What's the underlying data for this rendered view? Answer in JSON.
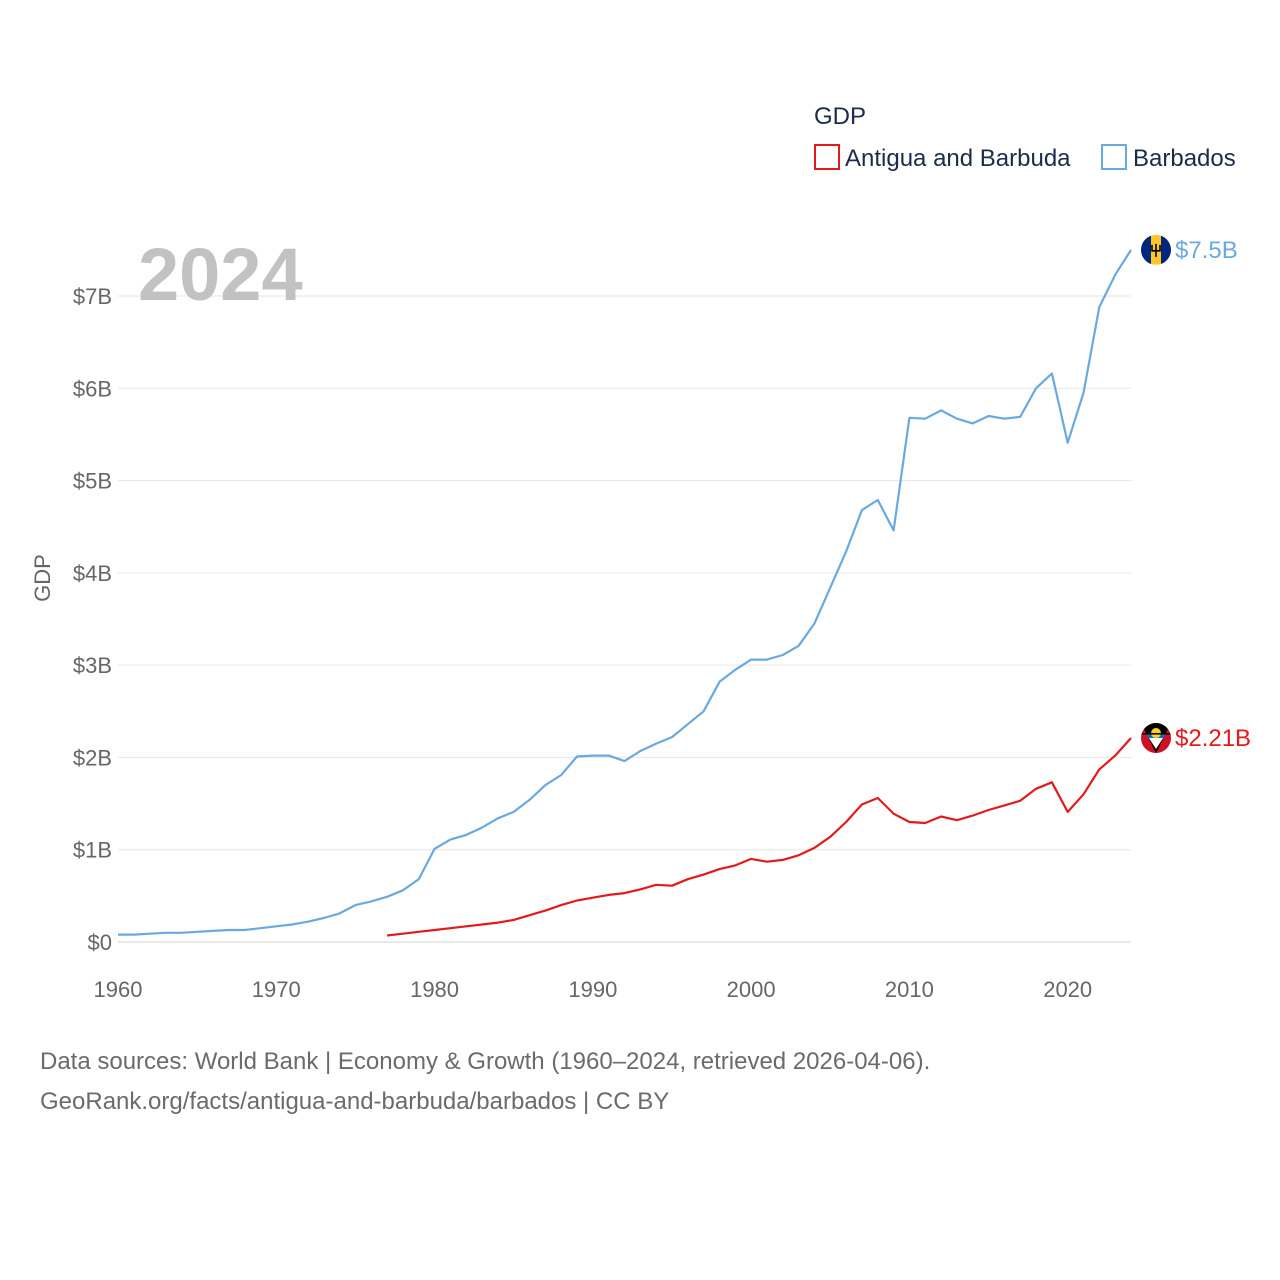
{
  "chart_data": {
    "type": "line",
    "title": "",
    "year_label": "2024",
    "xlabel": "",
    "ylabel": "GDP",
    "xlim": [
      1960,
      2024
    ],
    "ylim": [
      0,
      7.5
    ],
    "grid": true,
    "legend": {
      "title": "GDP",
      "placement": "top-right",
      "items": [
        {
          "label": "Antigua and Barbuda",
          "color": "#e31a1c"
        },
        {
          "label": "Barbados",
          "color": "#6aa9e0"
        }
      ]
    },
    "x_ticks": [
      1960,
      1970,
      1980,
      1990,
      2000,
      2010,
      2020
    ],
    "x_tick_labels": [
      "1960",
      "1970",
      "1980",
      "1990",
      "2000",
      "2010",
      "2020"
    ],
    "y_ticks": [
      0,
      1,
      2,
      3,
      4,
      5,
      6,
      7
    ],
    "y_tick_labels": [
      "$0",
      "$1B",
      "$2B",
      "$3B",
      "$4B",
      "$5B",
      "$6B",
      "$7B"
    ],
    "series": [
      {
        "name": "Barbados",
        "color": "#6aa9e0",
        "flag": "barbados-flag-icon",
        "end_label": "$7.5B",
        "x": [
          1960,
          1961,
          1962,
          1963,
          1964,
          1965,
          1966,
          1967,
          1968,
          1969,
          1970,
          1971,
          1972,
          1973,
          1974,
          1975,
          1976,
          1977,
          1978,
          1979,
          1980,
          1981,
          1982,
          1983,
          1984,
          1985,
          1986,
          1987,
          1988,
          1989,
          1990,
          1991,
          1992,
          1993,
          1994,
          1995,
          1996,
          1997,
          1998,
          1999,
          2000,
          2001,
          2002,
          2003,
          2004,
          2005,
          2006,
          2007,
          2008,
          2009,
          2010,
          2011,
          2012,
          2013,
          2014,
          2015,
          2016,
          2017,
          2018,
          2019,
          2020,
          2021,
          2022,
          2023,
          2024
        ],
        "values": [
          0.08,
          0.08,
          0.09,
          0.1,
          0.1,
          0.11,
          0.12,
          0.13,
          0.13,
          0.15,
          0.17,
          0.19,
          0.22,
          0.26,
          0.31,
          0.4,
          0.44,
          0.49,
          0.56,
          0.68,
          1.01,
          1.11,
          1.16,
          1.24,
          1.34,
          1.41,
          1.54,
          1.7,
          1.81,
          2.01,
          2.02,
          2.02,
          1.96,
          2.07,
          2.15,
          2.22,
          2.36,
          2.5,
          2.82,
          2.95,
          3.06,
          3.06,
          3.11,
          3.21,
          3.45,
          3.84,
          4.23,
          4.68,
          4.79,
          4.46,
          5.68,
          5.67,
          5.76,
          5.67,
          5.62,
          5.7,
          5.67,
          5.69,
          6.0,
          6.16,
          5.41,
          5.95,
          6.88,
          7.23,
          7.5
        ]
      },
      {
        "name": "Antigua and Barbuda",
        "color": "#e31a1c",
        "flag": "antigua-and-barbuda-flag-icon",
        "end_label": "$2.21B",
        "x": [
          1977,
          1978,
          1979,
          1980,
          1981,
          1982,
          1983,
          1984,
          1985,
          1986,
          1987,
          1988,
          1989,
          1990,
          1991,
          1992,
          1993,
          1994,
          1995,
          1996,
          1997,
          1998,
          1999,
          2000,
          2001,
          2002,
          2003,
          2004,
          2005,
          2006,
          2007,
          2008,
          2009,
          2010,
          2011,
          2012,
          2013,
          2014,
          2015,
          2016,
          2017,
          2018,
          2019,
          2020,
          2021,
          2022,
          2023,
          2024
        ],
        "values": [
          0.07,
          0.09,
          0.11,
          0.13,
          0.15,
          0.17,
          0.19,
          0.21,
          0.24,
          0.29,
          0.34,
          0.4,
          0.45,
          0.48,
          0.51,
          0.53,
          0.57,
          0.62,
          0.61,
          0.68,
          0.73,
          0.79,
          0.83,
          0.9,
          0.87,
          0.89,
          0.94,
          1.02,
          1.14,
          1.3,
          1.49,
          1.56,
          1.39,
          1.3,
          1.29,
          1.36,
          1.32,
          1.37,
          1.43,
          1.48,
          1.53,
          1.66,
          1.73,
          1.41,
          1.6,
          1.87,
          2.02,
          2.21
        ]
      }
    ]
  },
  "footer": {
    "line1": "Data sources: World Bank | Economy & Growth (1960–2024, retrieved 2026-04-06).",
    "line2": "GeoRank.org/facts/antigua-and-barbuda/barbados | CC BY"
  }
}
